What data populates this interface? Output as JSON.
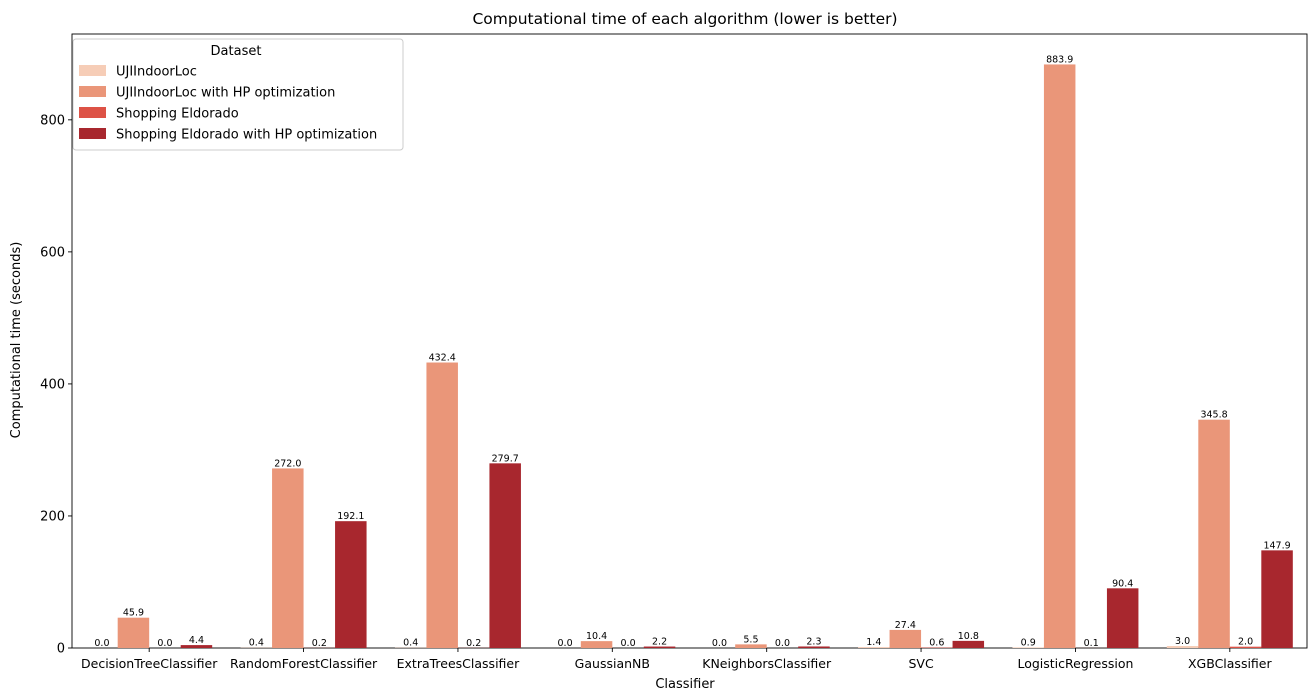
{
  "chart_data": {
    "type": "bar",
    "title": "Computational time of each algorithm (lower is better)",
    "xlabel": "Classifier",
    "ylabel": "Computational time (seconds)",
    "ylim": [
      0,
      930
    ],
    "yticks": [
      0,
      200,
      400,
      600,
      800
    ],
    "grid": false,
    "legend_title": "Dataset",
    "legend_position": "top-left",
    "categories": [
      "DecisionTreeClassifier",
      "RandomForestClassifier",
      "ExtraTreesClassifier",
      "GaussianNB",
      "KNeighborsClassifier",
      "SVC",
      "LogisticRegression",
      "XGBClassifier"
    ],
    "series": [
      {
        "name": "UJIIndoorLoc",
        "color": "#f6cdb7",
        "values": [
          0.0,
          0.4,
          0.4,
          0.0,
          0.0,
          1.4,
          0.9,
          3.0
        ],
        "labels": [
          "0.0",
          "0.4",
          "0.4",
          "0.0",
          "0.0",
          "1.4",
          "0.9",
          "3.0"
        ]
      },
      {
        "name": "UJIIndoorLoc with HP optimization",
        "color": "#ea9679",
        "values": [
          45.9,
          272.0,
          432.4,
          10.4,
          5.5,
          27.4,
          883.9,
          345.8
        ],
        "labels": [
          "45.9",
          "272.0",
          "432.4",
          "10.4",
          "5.5",
          "27.4",
          "883.9",
          "345.8"
        ]
      },
      {
        "name": "Shopping Eldorado",
        "color": "#dd5246",
        "values": [
          0.0,
          0.2,
          0.2,
          0.0,
          0.0,
          0.6,
          0.1,
          2.0
        ],
        "labels": [
          "0.0",
          "0.2",
          "0.2",
          "0.0",
          "0.0",
          "0.6",
          "0.1",
          "2.0"
        ]
      },
      {
        "name": "Shopping Eldorado with HP optimization",
        "color": "#a8272e",
        "values": [
          4.4,
          192.1,
          279.7,
          2.2,
          2.3,
          10.8,
          90.4,
          147.9
        ],
        "labels": [
          "4.4",
          "192.1",
          "279.7",
          "2.2",
          "2.3",
          "10.8",
          "90.4",
          "147.9"
        ]
      }
    ]
  }
}
